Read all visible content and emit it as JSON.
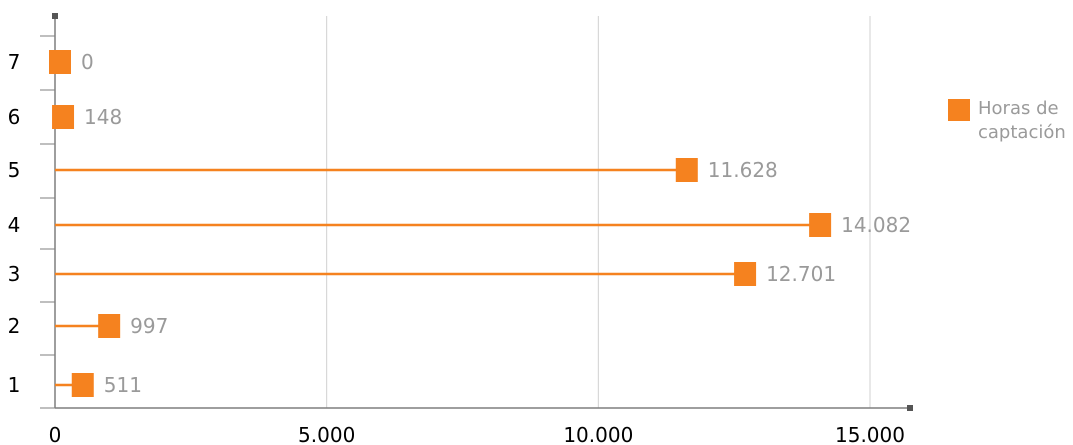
{
  "chart_data": {
    "type": "lollipop",
    "orientation": "horizontal",
    "categories": [
      "1",
      "2",
      "3",
      "4",
      "5",
      "6",
      "7"
    ],
    "series": [
      {
        "name": "Horas de captación",
        "values": [
          511,
          997,
          12701,
          14082,
          11628,
          148,
          0
        ]
      }
    ],
    "data_labels": [
      "511",
      "997",
      "12.701",
      "14.082",
      "11.628",
      "148",
      "0"
    ],
    "x_ticks": [
      {
        "value": 0,
        "label": "0"
      },
      {
        "value": 5000,
        "label": "5.000"
      },
      {
        "value": 10000,
        "label": "10.000"
      },
      {
        "value": 15000,
        "label": "15.000"
      }
    ],
    "xlim": [
      0,
      15000
    ],
    "grid": "vertical",
    "legend_position": "right",
    "title": "",
    "xlabel": "",
    "ylabel": ""
  },
  "colors": {
    "series": "#f5821f",
    "grid": "#d0d0d0",
    "axis": "#7f7f7f",
    "data_label": "#9a9a9a"
  },
  "legend": {
    "label": "Horas de captación"
  }
}
